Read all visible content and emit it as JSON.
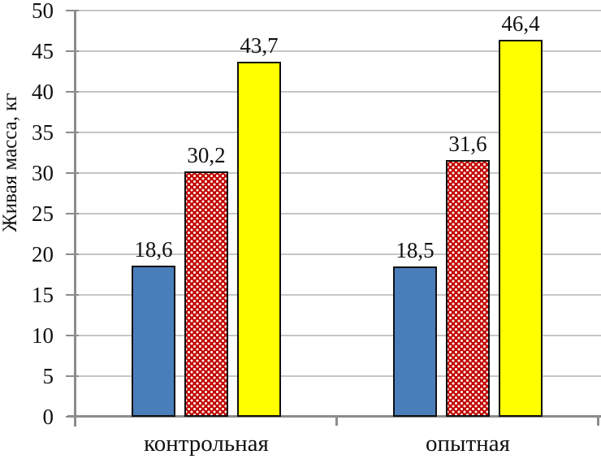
{
  "chart_data": {
    "type": "bar",
    "title": "",
    "ylabel": "Живая масса, кг",
    "xlabel": "",
    "ylim": [
      0,
      50
    ],
    "ytick_step": 5,
    "yticks": [
      0,
      5,
      10,
      15,
      20,
      25,
      30,
      35,
      40,
      45,
      50
    ],
    "categories": [
      "контрольная",
      "опытная"
    ],
    "series": [
      {
        "name": "series-1-blue",
        "color": "#4a7ebb",
        "pattern": "solid",
        "values": [
          18.6,
          18.5
        ],
        "labels": [
          "18,6",
          "18,5"
        ]
      },
      {
        "name": "series-2-red",
        "color": "#c00000",
        "pattern": "white-dots",
        "values": [
          30.2,
          31.6
        ],
        "labels": [
          "30,2",
          "31,6"
        ]
      },
      {
        "name": "series-3-yellow",
        "color": "#ffff00",
        "pattern": "solid",
        "values": [
          43.7,
          46.4
        ],
        "labels": [
          "43,7",
          "46,4"
        ]
      }
    ],
    "grid": true,
    "legend": "none",
    "decimal_separator": ","
  },
  "colors": {
    "axis": "#8c8c8c",
    "gridline": "#c6c6c6",
    "bar_border": "#111111",
    "text": "#111111",
    "background": "#ffffff"
  }
}
